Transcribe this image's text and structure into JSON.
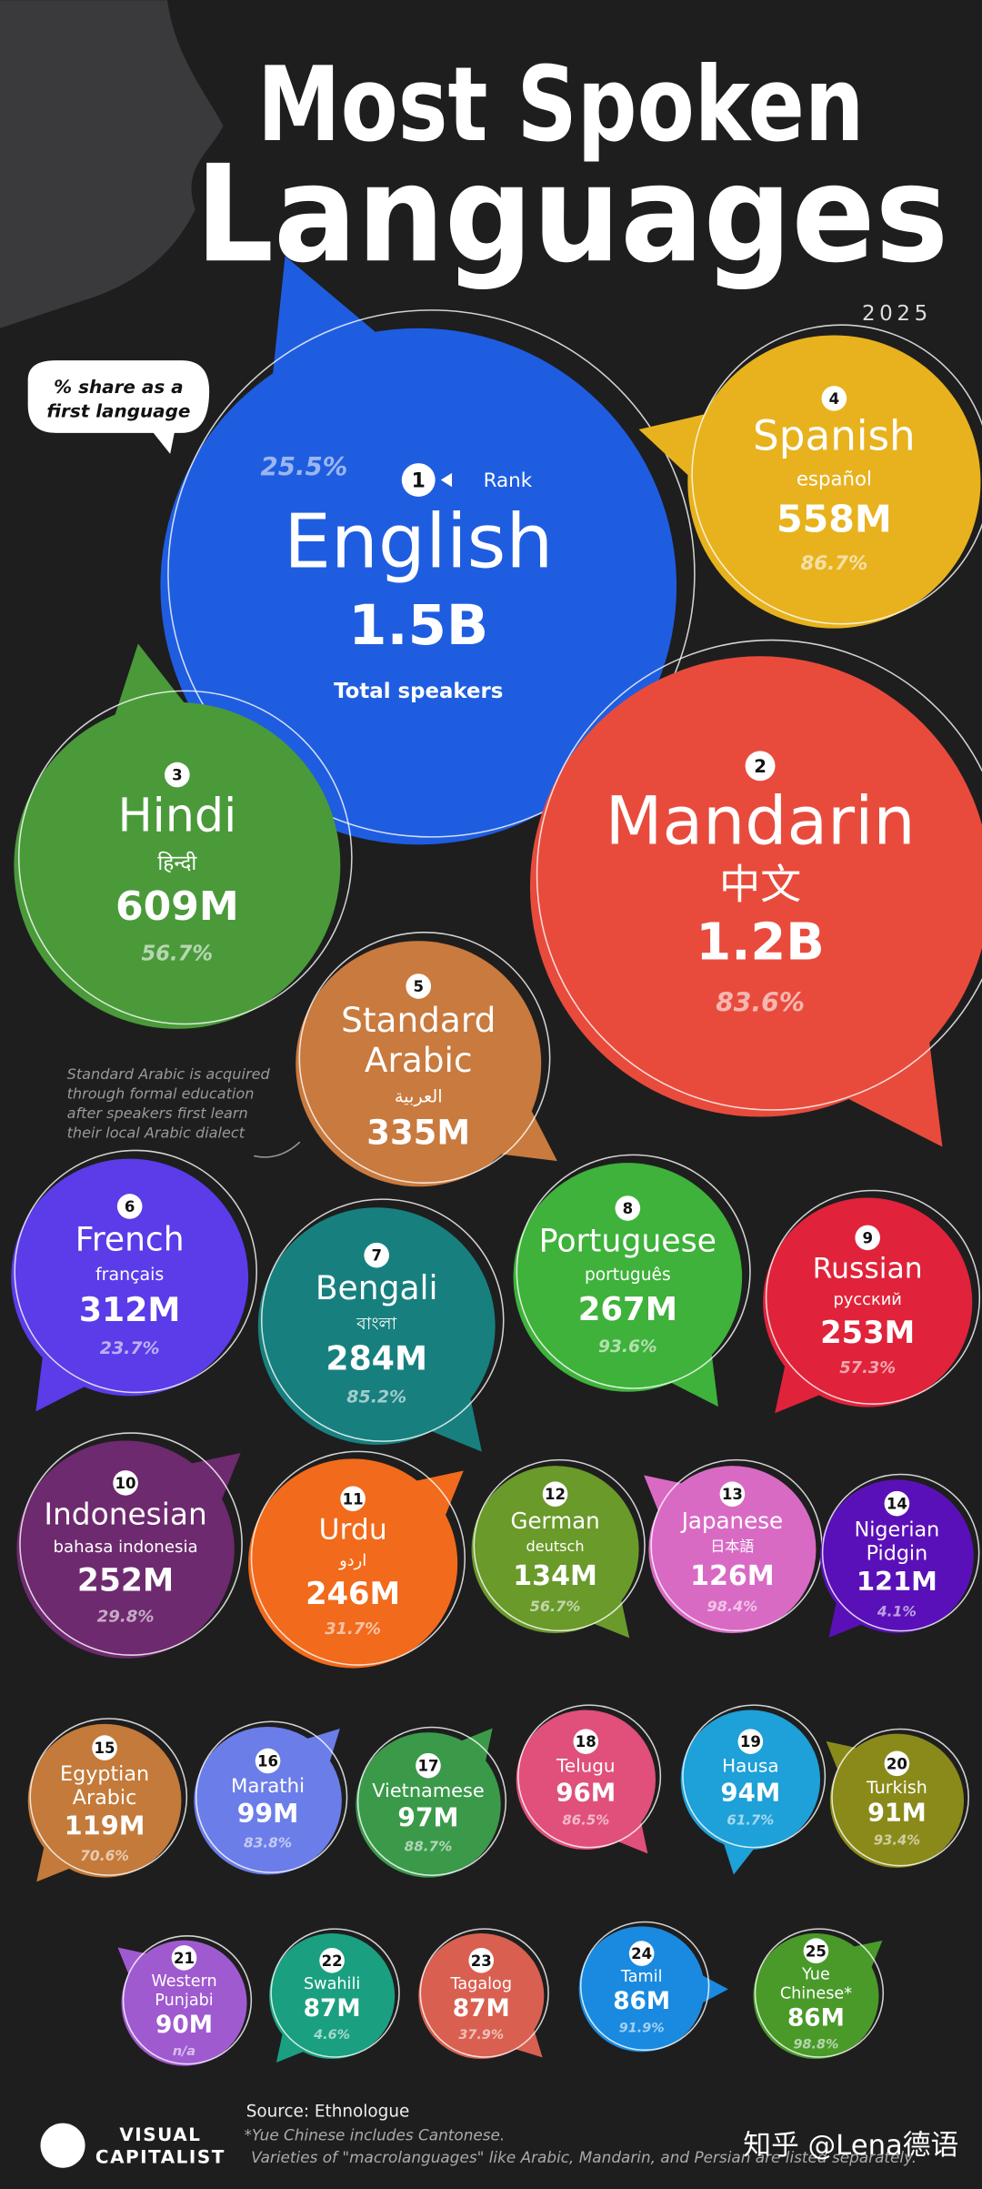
{
  "header": {
    "title_line1": "Most Spoken",
    "title_line2": "Languages",
    "year": "2025"
  },
  "legend": {
    "share_note": [
      "% share as a",
      "first language"
    ],
    "rank_label": "Rank",
    "total_label": "Total speakers"
  },
  "note": [
    "Standard Arabic is acquired",
    "through formal education",
    "after speakers first learn",
    "their local Arabic dialect"
  ],
  "languages": [
    {
      "rank": "1",
      "name": [
        "English"
      ],
      "speakers": "1.5B",
      "share": "25.5%"
    },
    {
      "rank": "2",
      "name": [
        "Mandarin"
      ],
      "native": "中文",
      "speakers": "1.2B",
      "share": "83.6%"
    },
    {
      "rank": "3",
      "name": [
        "Hindi"
      ],
      "native": "हिन्दी",
      "speakers": "609M",
      "share": "56.7%"
    },
    {
      "rank": "4",
      "name": [
        "Spanish"
      ],
      "native": "español",
      "speakers": "558M",
      "share": "86.7%"
    },
    {
      "rank": "5",
      "name": [
        "Standard",
        "Arabic"
      ],
      "native": "العربية",
      "speakers": "335M"
    },
    {
      "rank": "6",
      "name": [
        "French"
      ],
      "native": "français",
      "speakers": "312M",
      "share": "23.7%"
    },
    {
      "rank": "7",
      "name": [
        "Bengali"
      ],
      "native": "বাংলা",
      "speakers": "284M",
      "share": "85.2%"
    },
    {
      "rank": "8",
      "name": [
        "Portuguese"
      ],
      "native": "português",
      "speakers": "267M",
      "share": "93.6%"
    },
    {
      "rank": "9",
      "name": [
        "Russian"
      ],
      "native": "русский",
      "speakers": "253M",
      "share": "57.3%"
    },
    {
      "rank": "10",
      "name": [
        "Indonesian"
      ],
      "native": "bahasa indonesia",
      "speakers": "252M",
      "share": "29.8%"
    },
    {
      "rank": "11",
      "name": [
        "Urdu"
      ],
      "native": "اردو",
      "speakers": "246M",
      "share": "31.7%"
    },
    {
      "rank": "12",
      "name": [
        "German"
      ],
      "native": "deutsch",
      "speakers": "134M",
      "share": "56.7%"
    },
    {
      "rank": "13",
      "name": [
        "Japanese"
      ],
      "native": "日本語",
      "speakers": "126M",
      "share": "98.4%"
    },
    {
      "rank": "14",
      "name": [
        "Nigerian",
        "Pidgin"
      ],
      "speakers": "121M",
      "share": "4.1%"
    },
    {
      "rank": "15",
      "name": [
        "Egyptian",
        "Arabic"
      ],
      "speakers": "119M",
      "share": "70.6%"
    },
    {
      "rank": "16",
      "name": [
        "Marathi"
      ],
      "speakers": "99M",
      "share": "83.8%"
    },
    {
      "rank": "17",
      "name": [
        "Vietnamese"
      ],
      "speakers": "97M",
      "share": "88.7%"
    },
    {
      "rank": "18",
      "name": [
        "Telugu"
      ],
      "speakers": "96M",
      "share": "86.5%"
    },
    {
      "rank": "19",
      "name": [
        "Hausa"
      ],
      "speakers": "94M",
      "share": "61.7%"
    },
    {
      "rank": "20",
      "name": [
        "Turkish"
      ],
      "speakers": "91M",
      "share": "93.4%"
    },
    {
      "rank": "21",
      "name": [
        "Western",
        "Punjabi"
      ],
      "speakers": "90M",
      "share": "n/a"
    },
    {
      "rank": "22",
      "name": [
        "Swahili"
      ],
      "speakers": "87M",
      "share": "4.6%"
    },
    {
      "rank": "23",
      "name": [
        "Tagalog"
      ],
      "speakers": "87M",
      "share": "37.9%"
    },
    {
      "rank": "24",
      "name": [
        "Tamil"
      ],
      "speakers": "86M",
      "share": "91.9%"
    },
    {
      "rank": "25",
      "name": [
        "Yue",
        "Chinese*"
      ],
      "speakers": "86M",
      "share": "98.8%"
    }
  ],
  "footer": {
    "source": "Source: Ethnologue",
    "footnote1": "*Yue Chinese includes Cantonese.",
    "footnote2": "Varieties of \"macrolanguages\" like Arabic, Mandarin, and Persian are listed separately.",
    "brand": [
      "VISUAL",
      "CAPITALIST"
    ],
    "watermark": "知乎 @Lena德语"
  }
}
